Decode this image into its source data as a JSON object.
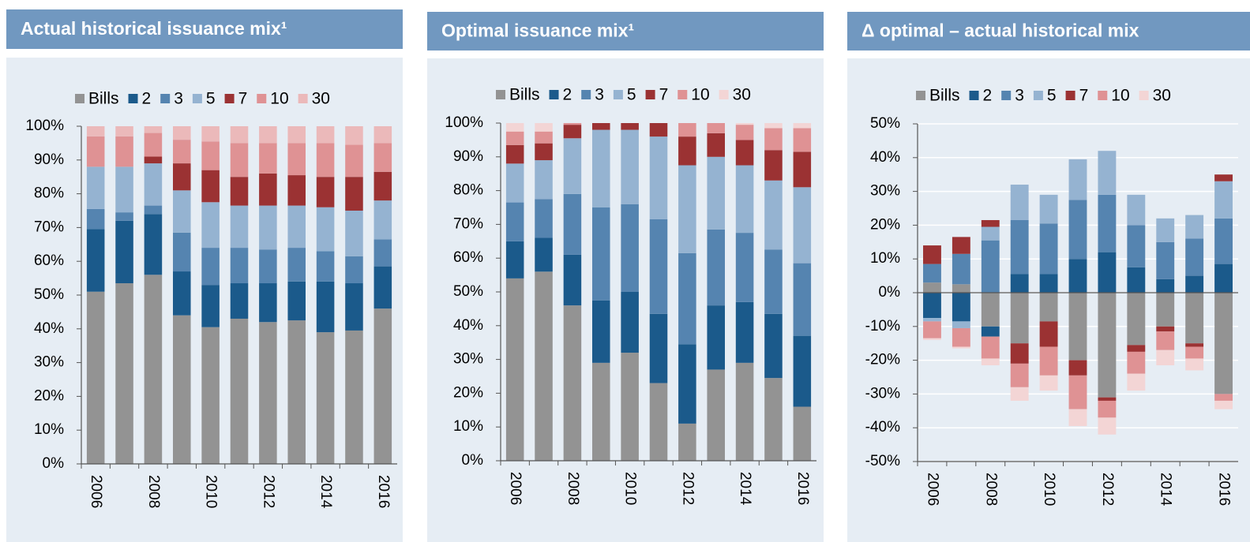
{
  "chart_data": [
    {
      "type": "bar",
      "stacked": true,
      "title": "Actual historical issuance mix¹",
      "categories": [
        "2006",
        null,
        "2008",
        null,
        "2010",
        null,
        "2012",
        null,
        "2014",
        null,
        "2016"
      ],
      "series": [
        {
          "name": "Bills",
          "color": "#939393",
          "values": [
            51,
            53.5,
            56,
            44,
            40.5,
            43,
            42,
            42.5,
            39,
            39.5,
            46
          ]
        },
        {
          "name": "2",
          "color": "#1b5a8b",
          "values": [
            18.5,
            18.5,
            18,
            13,
            12.5,
            10.5,
            11.5,
            11.5,
            15,
            14,
            12.5
          ]
        },
        {
          "name": "3",
          "color": "#5584b0",
          "values": [
            6,
            2.5,
            2.5,
            11.5,
            11,
            10.5,
            10,
            10,
            9,
            8,
            8
          ]
        },
        {
          "name": "5",
          "color": "#95b3d1",
          "values": [
            12.5,
            13.5,
            12.5,
            12.5,
            13.5,
            12.5,
            13,
            12.5,
            13,
            13.5,
            11.5
          ]
        },
        {
          "name": "7",
          "color": "#9b3233",
          "values": [
            0,
            0,
            2,
            8,
            9.5,
            8.5,
            9.5,
            9,
            9,
            10,
            8.5
          ]
        },
        {
          "name": "10",
          "color": "#df9294",
          "values": [
            9,
            9,
            7,
            7,
            8.5,
            10,
            9,
            9.5,
            10,
            9.5,
            8.5
          ]
        },
        {
          "name": "30",
          "color": "#ebb9ba",
          "values": [
            3,
            3,
            2,
            4,
            4.5,
            5,
            5,
            5,
            5,
            5.5,
            5
          ]
        }
      ],
      "ylim": [
        0,
        100
      ],
      "yticks": [
        {
          "value": 0,
          "label": "0%"
        },
        {
          "value": 10,
          "label": "10%"
        },
        {
          "value": 20,
          "label": "20%"
        },
        {
          "value": 30,
          "label": "30%"
        },
        {
          "value": 40,
          "label": "40%"
        },
        {
          "value": 50,
          "label": "50%"
        },
        {
          "value": 60,
          "label": "60%"
        },
        {
          "value": 70,
          "label": "70%"
        },
        {
          "value": 80,
          "label": "80%"
        },
        {
          "value": 90,
          "label": "90%"
        },
        {
          "value": 100,
          "label": "100%"
        }
      ],
      "grid": false,
      "legend": "top"
    },
    {
      "type": "bar",
      "stacked": true,
      "title": "Optimal issuance mix¹",
      "categories": [
        "2006",
        null,
        "2008",
        null,
        "2010",
        null,
        "2012",
        null,
        "2014",
        null,
        "2016"
      ],
      "series": [
        {
          "name": "Bills",
          "color": "#939393",
          "values": [
            54,
            56,
            46,
            29,
            32,
            23,
            11,
            27,
            29,
            24.5,
            16
          ]
        },
        {
          "name": "2",
          "color": "#1b5a8b",
          "values": [
            11,
            10,
            15,
            18.5,
            18,
            20.5,
            23.5,
            19,
            18,
            19,
            21
          ]
        },
        {
          "name": "3",
          "color": "#5584b0",
          "values": [
            11.5,
            11.5,
            18,
            27.5,
            26,
            28,
            27,
            22.5,
            20.5,
            19,
            21.5
          ]
        },
        {
          "name": "5",
          "color": "#95b3d1",
          "values": [
            11.5,
            11.5,
            16.5,
            23,
            22,
            24.5,
            26,
            21.5,
            20,
            20.5,
            22.5
          ]
        },
        {
          "name": "7",
          "color": "#9b3233",
          "values": [
            5.5,
            5,
            4,
            2,
            2,
            4,
            8.5,
            7,
            7.5,
            9,
            10.5
          ]
        },
        {
          "name": "10",
          "color": "#df9294",
          "values": [
            4,
            3.5,
            0.5,
            0,
            0,
            0,
            4,
            3,
            4.5,
            6.5,
            7
          ]
        },
        {
          "name": "30",
          "color": "#f3d5d5",
          "values": [
            2.5,
            2.5,
            0,
            0,
            0,
            0,
            0,
            0,
            0.5,
            1.5,
            1.5
          ]
        }
      ],
      "ylim": [
        0,
        100
      ],
      "yticks": [
        {
          "value": 0,
          "label": "0%"
        },
        {
          "value": 10,
          "label": "10%"
        },
        {
          "value": 20,
          "label": "20%"
        },
        {
          "value": 30,
          "label": "30%"
        },
        {
          "value": 40,
          "label": "40%"
        },
        {
          "value": 50,
          "label": "50%"
        },
        {
          "value": 60,
          "label": "60%"
        },
        {
          "value": 70,
          "label": "70%"
        },
        {
          "value": 80,
          "label": "80%"
        },
        {
          "value": 90,
          "label": "90%"
        },
        {
          "value": 100,
          "label": "100%"
        }
      ],
      "grid": false,
      "legend": "top"
    },
    {
      "type": "bar",
      "stacked": true,
      "title": "Δ optimal – actual historical mix",
      "categories": [
        "2006",
        null,
        "2008",
        null,
        "2010",
        null,
        "2012",
        null,
        "2014",
        null,
        "2016"
      ],
      "series": [
        {
          "name": "Bills",
          "color": "#939393",
          "values": [
            3,
            2.5,
            -10,
            -15,
            -8.5,
            -20,
            -31,
            -15.5,
            -10,
            -15,
            -30
          ]
        },
        {
          "name": "2",
          "color": "#1b5a8b",
          "values": [
            -7.5,
            -8.5,
            -3,
            5.5,
            5.5,
            10,
            12,
            7.5,
            4,
            5,
            8.5
          ]
        },
        {
          "name": "3",
          "color": "#5584b0",
          "values": [
            5.5,
            9,
            15.5,
            16,
            15,
            17.5,
            17,
            12.5,
            11,
            11,
            13.5
          ]
        },
        {
          "name": "5",
          "color": "#95b3d1",
          "values": [
            -1,
            -2,
            4,
            10.5,
            8.5,
            12,
            13,
            9,
            7,
            7,
            11
          ]
        },
        {
          "name": "7",
          "color": "#9b3233",
          "values": [
            5.5,
            5,
            2,
            -6,
            -7.5,
            -4.5,
            -1,
            -2,
            -1.5,
            -1,
            2
          ]
        },
        {
          "name": "10",
          "color": "#df9294",
          "values": [
            -5,
            -5.5,
            -6.5,
            -7,
            -8.5,
            -10,
            -5,
            -6.5,
            -5.5,
            -3.5,
            -2
          ]
        },
        {
          "name": "30",
          "color": "#f3d5d5",
          "values": [
            -0.5,
            -0.5,
            -2,
            -4,
            -4.5,
            -5,
            -5,
            -5,
            -4.5,
            -3.5,
            -2.5
          ]
        }
      ],
      "ylim": [
        -50,
        50
      ],
      "yticks": [
        {
          "value": -50,
          "label": "-50%"
        },
        {
          "value": -40,
          "label": "-40%"
        },
        {
          "value": -30,
          "label": "-30%"
        },
        {
          "value": -20,
          "label": "-20%"
        },
        {
          "value": -10,
          "label": "-10%"
        },
        {
          "value": 0,
          "label": "0%"
        },
        {
          "value": 10,
          "label": "10%"
        },
        {
          "value": 20,
          "label": "20%"
        },
        {
          "value": 30,
          "label": "30%"
        },
        {
          "value": 40,
          "label": "40%"
        },
        {
          "value": 50,
          "label": "50%"
        }
      ],
      "grid": true,
      "legend": "top"
    }
  ]
}
